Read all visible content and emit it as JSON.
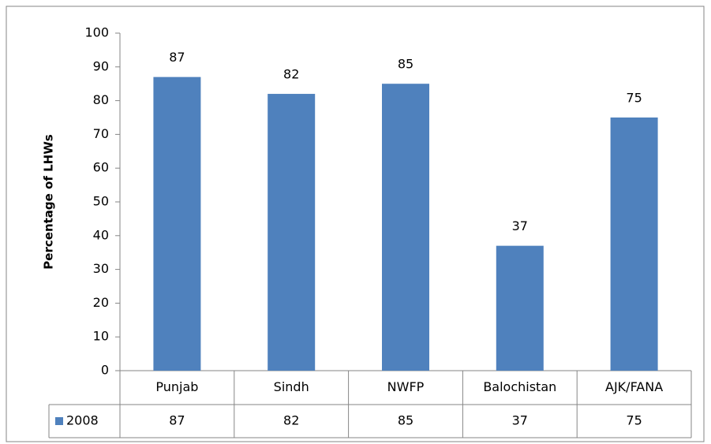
{
  "chart_data": {
    "type": "bar",
    "y_label": "Percentage of LHWs",
    "categories": [
      "Punjab",
      "Sindh",
      "NWFP",
      "Balochistan",
      "AJK/FANA"
    ],
    "series": [
      {
        "name": "2008",
        "color": "#4f81bd",
        "values": [
          87,
          82,
          85,
          37,
          75
        ]
      }
    ],
    "ylim": [
      0,
      100
    ],
    "yticks": [
      0,
      10,
      20,
      30,
      40,
      50,
      60,
      70,
      80,
      90,
      100
    ],
    "grid": false,
    "data_table": true
  }
}
